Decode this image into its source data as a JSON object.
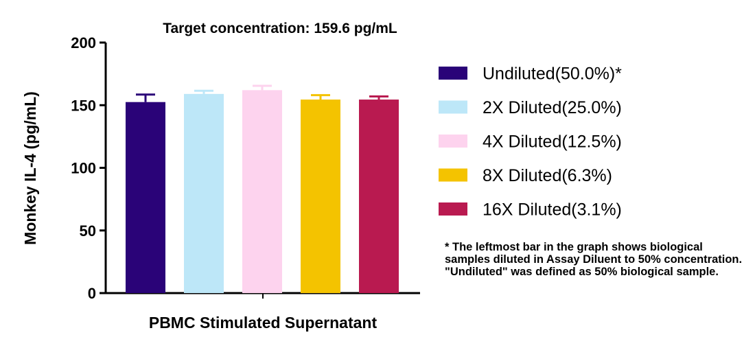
{
  "chart_data": {
    "type": "bar",
    "title": "Target concentration: 159.6 pg/mL",
    "xlabel": "PBMC Stimulated Supernatant",
    "ylabel": "Monkey IL-4 (pg/mL)",
    "ylim": [
      0,
      200
    ],
    "yticks": [
      "0",
      "50",
      "100",
      "150",
      "200"
    ],
    "grid": false,
    "legend_position": "right",
    "series": [
      {
        "name": "Undiluted(50.0%)*",
        "value": 152.5,
        "error": 6.0,
        "color": "#2a0378"
      },
      {
        "name": "2X Diluted(25.0%)",
        "value": 159.0,
        "error": 2.5,
        "color": "#bde7f8"
      },
      {
        "name": "4X Diluted(12.5%)",
        "value": 162.0,
        "error": 3.5,
        "color": "#fdd3ee"
      },
      {
        "name": "8X Diluted(6.3%)",
        "value": 154.5,
        "error": 3.5,
        "color": "#f4c300"
      },
      {
        "name": "16X Diluted(3.1%)",
        "value": 154.5,
        "error": 2.5,
        "color": "#b91a50"
      }
    ]
  },
  "footnote": "* The leftmost bar in the graph shows biological samples diluted in Assay Diluent to 50% concentration. \"Undiluted\" was defined as 50% biological sample."
}
